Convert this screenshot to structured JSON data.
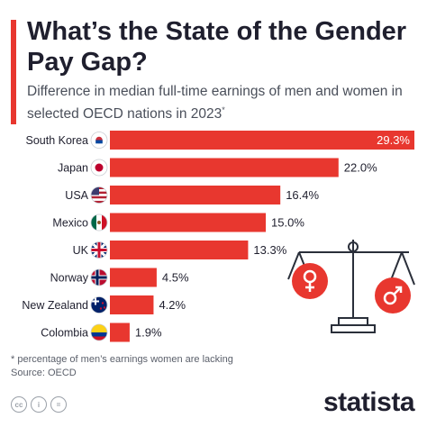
{
  "header": {
    "title": "What’s the State of the Gender Pay Gap?",
    "subtitle": "Difference in median full-time earnings of men and women in selected OECD nations in 2023",
    "subtitle_mark": "*"
  },
  "colors": {
    "accent": "#e8372f",
    "text": "#1f1f2e",
    "muted": "#5a5f6a"
  },
  "chart_data": {
    "type": "bar",
    "orientation": "horizontal",
    "categories": [
      "South Korea",
      "Japan",
      "USA",
      "Mexico",
      "UK",
      "Norway",
      "New Zealand",
      "Colombia"
    ],
    "values": [
      29.3,
      22.0,
      16.4,
      15.0,
      13.3,
      4.5,
      4.2,
      1.9
    ],
    "value_labels": [
      "29.3%",
      "22.0%",
      "16.4%",
      "15.0%",
      "13.3%",
      "4.5%",
      "4.2%",
      "1.9%"
    ],
    "flags": [
      "south-korea-flag-icon",
      "japan-flag-icon",
      "usa-flag-icon",
      "mexico-flag-icon",
      "uk-flag-icon",
      "norway-flag-icon",
      "new-zealand-flag-icon",
      "colombia-flag-icon"
    ],
    "title": "What’s the State of the Gender Pay Gap?",
    "xlabel": "",
    "ylabel": "",
    "xlim": [
      0,
      29.3
    ],
    "grid": false,
    "bar_color": "#e8372f"
  },
  "footnote": {
    "note": "* percentage of men’s earnings women are lacking",
    "source": "Source: OECD"
  },
  "footer": {
    "brand": "statista",
    "cc_icons": [
      "cc",
      "i",
      "="
    ]
  }
}
